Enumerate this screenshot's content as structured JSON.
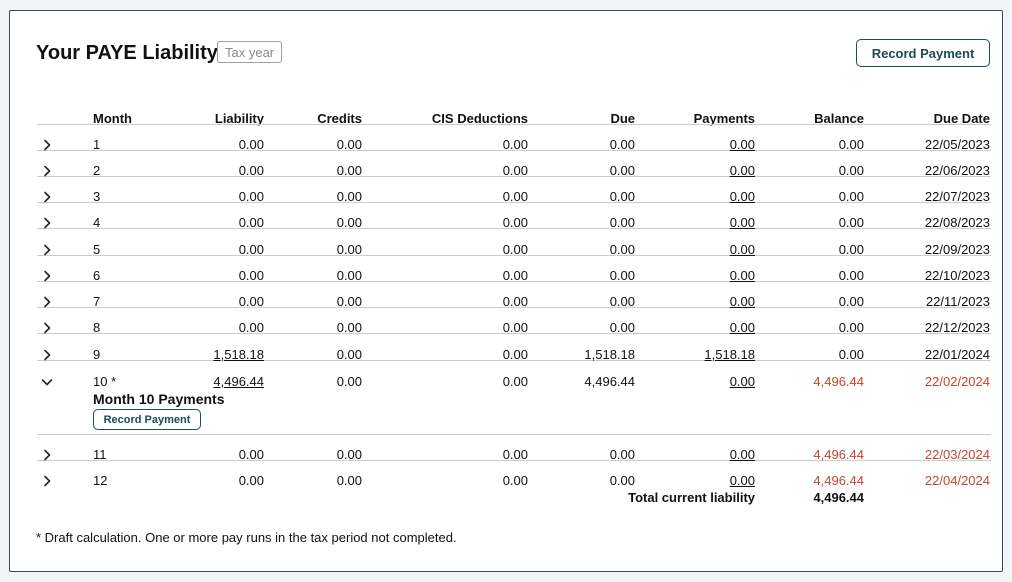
{
  "header": {
    "title": "Your PAYE Liability",
    "tax_year_label": "Tax year",
    "record_payment_label": "Record Payment"
  },
  "columns": [
    "Month",
    "Liability",
    "Credits",
    "CIS Deductions",
    "Due",
    "Payments",
    "Balance",
    "Due Date"
  ],
  "rows": [
    {
      "month": "1",
      "liability": "0.00",
      "credits": "0.00",
      "cis": "0.00",
      "due": "0.00",
      "payments": "0.00",
      "balance": "0.00",
      "due_date": "22/05/2023",
      "expanded": false,
      "overdue": false,
      "liability_link": false
    },
    {
      "month": "2",
      "liability": "0.00",
      "credits": "0.00",
      "cis": "0.00",
      "due": "0.00",
      "payments": "0.00",
      "balance": "0.00",
      "due_date": "22/06/2023",
      "expanded": false,
      "overdue": false,
      "liability_link": false
    },
    {
      "month": "3",
      "liability": "0.00",
      "credits": "0.00",
      "cis": "0.00",
      "due": "0.00",
      "payments": "0.00",
      "balance": "0.00",
      "due_date": "22/07/2023",
      "expanded": false,
      "overdue": false,
      "liability_link": false
    },
    {
      "month": "4",
      "liability": "0.00",
      "credits": "0.00",
      "cis": "0.00",
      "due": "0.00",
      "payments": "0.00",
      "balance": "0.00",
      "due_date": "22/08/2023",
      "expanded": false,
      "overdue": false,
      "liability_link": false
    },
    {
      "month": "5",
      "liability": "0.00",
      "credits": "0.00",
      "cis": "0.00",
      "due": "0.00",
      "payments": "0.00",
      "balance": "0.00",
      "due_date": "22/09/2023",
      "expanded": false,
      "overdue": false,
      "liability_link": false
    },
    {
      "month": "6",
      "liability": "0.00",
      "credits": "0.00",
      "cis": "0.00",
      "due": "0.00",
      "payments": "0.00",
      "balance": "0.00",
      "due_date": "22/10/2023",
      "expanded": false,
      "overdue": false,
      "liability_link": false
    },
    {
      "month": "7",
      "liability": "0.00",
      "credits": "0.00",
      "cis": "0.00",
      "due": "0.00",
      "payments": "0.00",
      "balance": "0.00",
      "due_date": "22/11/2023",
      "expanded": false,
      "overdue": false,
      "liability_link": false
    },
    {
      "month": "8",
      "liability": "0.00",
      "credits": "0.00",
      "cis": "0.00",
      "due": "0.00",
      "payments": "0.00",
      "balance": "0.00",
      "due_date": "22/12/2023",
      "expanded": false,
      "overdue": false,
      "liability_link": false
    },
    {
      "month": "9",
      "liability": "1,518.18",
      "credits": "0.00",
      "cis": "0.00",
      "due": "1,518.18",
      "payments": "1,518.18",
      "balance": "0.00",
      "due_date": "22/01/2024",
      "expanded": false,
      "overdue": false,
      "liability_link": true
    },
    {
      "month": "10 *",
      "liability": "4,496.44",
      "credits": "0.00",
      "cis": "0.00",
      "due": "4,496.44",
      "payments": "0.00",
      "balance": "4,496.44",
      "due_date": "22/02/2024",
      "expanded": true,
      "overdue": true,
      "liability_link": true
    },
    {
      "month": "11",
      "liability": "0.00",
      "credits": "0.00",
      "cis": "0.00",
      "due": "0.00",
      "payments": "0.00",
      "balance": "4,496.44",
      "due_date": "22/03/2024",
      "expanded": false,
      "overdue": true,
      "liability_link": false
    },
    {
      "month": "12",
      "liability": "0.00",
      "credits": "0.00",
      "cis": "0.00",
      "due": "0.00",
      "payments": "0.00",
      "balance": "4,496.44",
      "due_date": "22/04/2024",
      "expanded": false,
      "overdue": true,
      "liability_link": false
    }
  ],
  "expanded_section": {
    "title": "Month 10 Payments",
    "record_payment_label": "Record Payment"
  },
  "total": {
    "label": "Total current liability",
    "value": "4,496.44"
  },
  "footnote": "* Draft calculation. One or more pay runs in the tax period not completed.",
  "colors": {
    "accent": "#1d4a59",
    "overdue": "#c9432c",
    "border": "#3a4a58"
  },
  "icons": {
    "collapsed": "chevron-right-icon",
    "expanded": "chevron-down-icon"
  }
}
